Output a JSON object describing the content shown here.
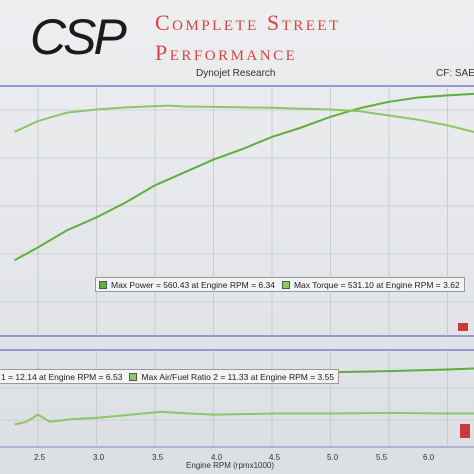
{
  "header": {
    "logo_text": "CSP",
    "brand_line1": "Complete Street",
    "brand_line2": "Performance",
    "subtitle": "Dynojet Research",
    "cf_label": "CF: SAE"
  },
  "colors": {
    "power": "#5fae3e",
    "torque": "#8cc763",
    "afr1": "#5fae3e",
    "afr2": "#8cc763",
    "grid": "#b8bcc0",
    "border": "#7a82c8",
    "accent": "#d64444"
  },
  "chart_data": [
    {
      "type": "line",
      "title": "",
      "xlabel": "",
      "ylabel": "",
      "xlim": [
        2.3,
        6.7
      ],
      "ylim": [
        0,
        600
      ],
      "grid": true,
      "legend_position": "bottom-center",
      "legend": [
        "Max Power = 560.43 at Engine RPM = 6.34",
        "Max Torque = 531.10 at Engine RPM = 3.62"
      ],
      "series": [
        {
          "name": "Max Power = 560.43 at Engine RPM = 6.34",
          "x": [
            2.3,
            2.5,
            2.75,
            3.0,
            3.25,
            3.5,
            3.75,
            4.0,
            4.25,
            4.5,
            4.75,
            5.0,
            5.25,
            5.5,
            5.75,
            6.0,
            6.25,
            6.34,
            6.5
          ],
          "values": [
            170,
            200,
            240,
            270,
            305,
            345,
            375,
            405,
            430,
            458,
            480,
            505,
            525,
            540,
            550,
            555,
            559,
            560.43,
            556
          ]
        },
        {
          "name": "Max Torque = 531.10 at Engine RPM = 3.62",
          "x": [
            2.3,
            2.5,
            2.75,
            3.0,
            3.25,
            3.5,
            3.62,
            3.75,
            4.0,
            4.25,
            4.5,
            4.75,
            5.0,
            5.25,
            5.5,
            5.75,
            6.0,
            6.25,
            6.5
          ],
          "values": [
            470,
            495,
            515,
            522,
            527,
            530,
            531.1,
            529,
            528,
            527,
            526,
            524,
            522,
            518,
            508,
            498,
            485,
            468,
            450
          ]
        }
      ]
    },
    {
      "type": "line",
      "title": "",
      "xlabel": "Engine RPM (rpmx1000)",
      "ylabel": "",
      "xlim": [
        2.3,
        6.7
      ],
      "ticks_x": [
        "2.5",
        "3.0",
        "3.5",
        "4.0",
        "4.5",
        "5.0",
        "5.5",
        "6.0"
      ],
      "grid": true,
      "legend_position": "top-left",
      "legend": [
        "1 = 12.14 at Engine RPM = 6.53",
        "Max Air/Fuel Ratio 2 = 11.33 at Engine RPM = 3.55"
      ],
      "series": [
        {
          "name": "1 = 12.14 at Engine RPM = 6.53",
          "x": [
            2.3,
            2.4,
            2.5,
            2.6,
            2.8,
            3.0,
            3.2,
            3.4,
            3.55,
            3.8,
            4.0,
            4.5,
            5.0,
            5.5,
            6.0,
            6.53
          ],
          "values": [
            11.85,
            11.95,
            12.1,
            12.0,
            11.9,
            11.95,
            12.0,
            12.0,
            12.02,
            12.0,
            12.01,
            12.02,
            12.05,
            12.07,
            12.1,
            12.14
          ]
        },
        {
          "name": "Max Air/Fuel Ratio 2 = 11.33 at Engine RPM = 3.55",
          "x": [
            2.3,
            2.4,
            2.5,
            2.6,
            2.8,
            3.0,
            3.2,
            3.4,
            3.55,
            3.8,
            4.0,
            4.5,
            5.0,
            5.5,
            6.0,
            6.53
          ],
          "values": [
            11.1,
            11.15,
            11.28,
            11.15,
            11.2,
            11.22,
            11.26,
            11.3,
            11.33,
            11.3,
            11.28,
            11.3,
            11.3,
            11.31,
            11.3,
            11.3
          ]
        }
      ]
    }
  ]
}
